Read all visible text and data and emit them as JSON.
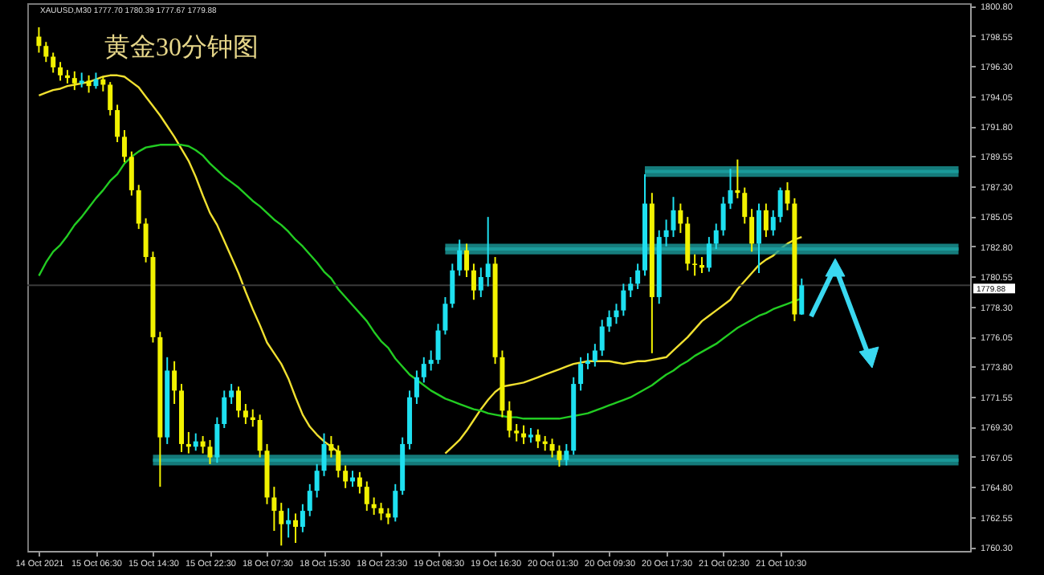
{
  "chart_data": {
    "type": "candlestick",
    "title": "黄金30分钟图",
    "annotations": [
      "XAUUSD,M30 1777.70 1780.39 1777.67 1779.88"
    ],
    "categories": [
      "14 Oct 2021",
      null,
      null,
      null,
      null,
      null,
      null,
      null,
      "15 Oct 06:30",
      null,
      null,
      null,
      null,
      null,
      null,
      null,
      "15 Oct 14:30",
      null,
      null,
      null,
      null,
      null,
      null,
      null,
      "15 Oct 22:30",
      null,
      null,
      null,
      null,
      null,
      null,
      null,
      "18 Oct 07:30",
      null,
      null,
      null,
      null,
      null,
      null,
      null,
      "18 Oct 15:30",
      null,
      null,
      null,
      null,
      null,
      null,
      null,
      "18 Oct 23:30",
      null,
      null,
      null,
      null,
      null,
      null,
      null,
      "19 Oct 08:30",
      null,
      null,
      null,
      null,
      null,
      null,
      null,
      "19 Oct 16:30",
      null,
      null,
      null,
      null,
      null,
      null,
      null,
      "20 Oct 01:30",
      null,
      null,
      null,
      null,
      null,
      null,
      null,
      "20 Oct 09:30",
      null,
      null,
      null,
      null,
      null,
      null,
      null,
      "20 Oct 17:30",
      null,
      null,
      null,
      null,
      null,
      null,
      null,
      "21 Oct 02:30",
      null,
      null,
      null,
      null,
      null,
      null,
      null,
      "21 Oct 10:30",
      null,
      null,
      null,
      null,
      null,
      null,
      null,
      null,
      null,
      null,
      null,
      null,
      null,
      null,
      null,
      null,
      null,
      null,
      null,
      null,
      null,
      null,
      null,
      null,
      null
    ],
    "ohlc": [
      [
        1798.5,
        1799.2,
        1797.3,
        1797.8
      ],
      [
        1797.8,
        1798.1,
        1796.6,
        1797.0
      ],
      [
        1797.0,
        1797.3,
        1795.8,
        1796.2
      ],
      [
        1796.2,
        1796.6,
        1795.2,
        1795.6
      ],
      [
        1795.6,
        1796.0,
        1795.0,
        1795.4
      ],
      [
        1795.4,
        1795.9,
        1794.5,
        1795.0
      ],
      [
        1795.0,
        1795.8,
        1794.7,
        1795.2
      ],
      [
        1795.2,
        1795.6,
        1794.3,
        1794.8
      ],
      [
        1794.8,
        1795.8,
        1794.6,
        1795.3
      ],
      [
        1795.3,
        1795.5,
        1794.4,
        1794.9
      ],
      [
        1794.9,
        1795.1,
        1792.6,
        1793.0
      ],
      [
        1793.0,
        1793.4,
        1790.6,
        1791.0
      ],
      [
        1791.0,
        1791.5,
        1789.1,
        1789.5
      ],
      [
        1789.5,
        1789.9,
        1786.6,
        1787.0
      ],
      [
        1787.0,
        1787.4,
        1784.1,
        1784.5
      ],
      [
        1784.5,
        1784.9,
        1781.6,
        1782.0
      ],
      [
        1782.0,
        1782.4,
        1775.6,
        1776.0
      ],
      [
        1776.0,
        1776.4,
        1764.8,
        1768.5
      ],
      [
        1768.5,
        1774.5,
        1768.0,
        1773.5
      ],
      [
        1773.5,
        1774.2,
        1771.0,
        1772.0
      ],
      [
        1772.0,
        1772.5,
        1767.4,
        1768.0
      ],
      [
        1768.0,
        1768.9,
        1767.3,
        1767.8
      ],
      [
        1767.8,
        1768.8,
        1767.5,
        1768.2
      ],
      [
        1768.2,
        1768.6,
        1767.3,
        1767.8
      ],
      [
        1767.8,
        1768.3,
        1766.5,
        1767.0
      ],
      [
        1767.0,
        1770.0,
        1766.6,
        1769.5
      ],
      [
        1769.5,
        1772.0,
        1769.2,
        1771.5
      ],
      [
        1771.5,
        1772.5,
        1771.0,
        1772.0
      ],
      [
        1772.0,
        1772.3,
        1770.0,
        1770.5
      ],
      [
        1770.5,
        1771.0,
        1769.5,
        1770.0
      ],
      [
        1770.0,
        1770.6,
        1769.3,
        1769.8
      ],
      [
        1769.8,
        1770.2,
        1767.0,
        1767.5
      ],
      [
        1767.5,
        1768.0,
        1763.5,
        1764.0
      ],
      [
        1764.0,
        1764.8,
        1761.5,
        1763.0
      ],
      [
        1763.0,
        1763.6,
        1760.4,
        1762.0
      ],
      [
        1762.0,
        1763.2,
        1761.0,
        1762.3
      ],
      [
        1762.3,
        1762.8,
        1760.6,
        1761.8
      ],
      [
        1761.8,
        1763.5,
        1761.4,
        1763.0
      ],
      [
        1763.0,
        1765.0,
        1762.6,
        1764.5
      ],
      [
        1764.5,
        1766.5,
        1764.0,
        1766.0
      ],
      [
        1766.0,
        1768.8,
        1765.6,
        1768.0
      ],
      [
        1768.0,
        1768.6,
        1767.0,
        1767.5
      ],
      [
        1767.5,
        1767.9,
        1765.5,
        1766.0
      ],
      [
        1766.0,
        1766.4,
        1764.7,
        1765.2
      ],
      [
        1765.2,
        1766.0,
        1764.8,
        1765.5
      ],
      [
        1765.5,
        1765.9,
        1764.3,
        1764.8
      ],
      [
        1764.8,
        1765.2,
        1763.0,
        1763.5
      ],
      [
        1763.5,
        1764.0,
        1762.7,
        1763.2
      ],
      [
        1763.2,
        1763.6,
        1762.3,
        1762.8
      ],
      [
        1762.8,
        1763.2,
        1762.0,
        1762.5
      ],
      [
        1762.5,
        1765.0,
        1762.2,
        1764.5
      ],
      [
        1764.5,
        1768.5,
        1764.2,
        1768.0
      ],
      [
        1768.0,
        1772.0,
        1767.6,
        1771.5
      ],
      [
        1771.5,
        1773.5,
        1771.0,
        1773.0
      ],
      [
        1773.0,
        1774.5,
        1772.6,
        1774.0
      ],
      [
        1774.0,
        1775.0,
        1773.5,
        1774.3
      ],
      [
        1774.3,
        1777.0,
        1774.0,
        1776.5
      ],
      [
        1776.5,
        1779.0,
        1776.2,
        1778.5
      ],
      [
        1778.5,
        1781.5,
        1778.2,
        1781.0
      ],
      [
        1781.0,
        1783.3,
        1780.6,
        1782.5
      ],
      [
        1782.5,
        1783.0,
        1780.5,
        1781.0
      ],
      [
        1781.0,
        1781.5,
        1778.8,
        1779.5
      ],
      [
        1779.5,
        1781.2,
        1779.0,
        1780.5
      ],
      [
        1780.5,
        1785.0,
        1779.8,
        1781.5
      ],
      [
        1781.5,
        1782.0,
        1774.0,
        1774.5
      ],
      [
        1774.5,
        1775.0,
        1770.0,
        1770.5
      ],
      [
        1770.5,
        1771.2,
        1768.5,
        1769.0
      ],
      [
        1769.0,
        1769.5,
        1768.2,
        1768.8
      ],
      [
        1768.8,
        1769.4,
        1768.0,
        1768.5
      ],
      [
        1768.5,
        1769.2,
        1768.1,
        1768.7
      ],
      [
        1768.7,
        1769.1,
        1767.7,
        1768.2
      ],
      [
        1768.2,
        1768.6,
        1767.5,
        1768.0
      ],
      [
        1768.0,
        1768.4,
        1767.0,
        1767.5
      ],
      [
        1767.5,
        1767.9,
        1766.3,
        1766.8
      ],
      [
        1766.8,
        1768.0,
        1766.4,
        1767.5
      ],
      [
        1767.5,
        1773.0,
        1767.2,
        1772.5
      ],
      [
        1772.5,
        1774.5,
        1772.0,
        1774.0
      ],
      [
        1774.0,
        1774.8,
        1773.6,
        1774.2
      ],
      [
        1774.2,
        1775.5,
        1773.8,
        1775.0
      ],
      [
        1775.0,
        1777.3,
        1774.6,
        1776.8
      ],
      [
        1776.8,
        1778.0,
        1776.4,
        1777.5
      ],
      [
        1777.5,
        1778.5,
        1777.0,
        1778.0
      ],
      [
        1778.0,
        1780.0,
        1777.6,
        1779.5
      ],
      [
        1779.5,
        1780.5,
        1779.0,
        1780.0
      ],
      [
        1780.0,
        1781.5,
        1779.6,
        1781.0
      ],
      [
        1781.0,
        1788.2,
        1780.6,
        1786.0
      ],
      [
        1786.0,
        1786.8,
        1774.8,
        1779.0
      ],
      [
        1779.0,
        1784.0,
        1778.5,
        1783.5
      ],
      [
        1783.5,
        1784.8,
        1782.8,
        1784.0
      ],
      [
        1784.0,
        1786.5,
        1783.5,
        1785.5
      ],
      [
        1785.5,
        1786.0,
        1783.8,
        1784.5
      ],
      [
        1784.5,
        1785.0,
        1781.0,
        1781.5
      ],
      [
        1781.5,
        1782.2,
        1780.6,
        1781.4
      ],
      [
        1781.4,
        1782.0,
        1780.8,
        1781.2
      ],
      [
        1781.2,
        1783.5,
        1780.9,
        1783.0
      ],
      [
        1783.0,
        1784.5,
        1782.6,
        1784.0
      ],
      [
        1784.0,
        1786.5,
        1783.6,
        1786.0
      ],
      [
        1786.0,
        1788.6,
        1785.6,
        1787.0
      ],
      [
        1787.0,
        1789.3,
        1786.4,
        1786.8
      ],
      [
        1786.8,
        1787.2,
        1784.5,
        1785.0
      ],
      [
        1785.0,
        1785.6,
        1782.4,
        1783.0
      ],
      [
        1783.0,
        1786.0,
        1780.8,
        1785.5
      ],
      [
        1785.5,
        1786.0,
        1783.5,
        1784.0
      ],
      [
        1784.0,
        1785.5,
        1783.6,
        1785.0
      ],
      [
        1785.0,
        1787.2,
        1784.6,
        1787.0
      ],
      [
        1787.0,
        1787.6,
        1785.5,
        1786.0
      ],
      [
        1786.0,
        1786.4,
        1777.2,
        1777.7
      ],
      [
        1777.7,
        1780.39,
        1777.67,
        1779.88
      ],
      null,
      null,
      null,
      null,
      null,
      null,
      null,
      null,
      null,
      null,
      null,
      null,
      null,
      null,
      null,
      null,
      null,
      null,
      null,
      null,
      null,
      null
    ],
    "colors": [
      "#f2f200",
      "#f2f200",
      "#f2f200",
      "#f2f200",
      "#f2f200",
      "#f2f200",
      "#1ee0f0",
      "#f2f200",
      "#1ee0f0",
      "#f2f200",
      "#f2f200",
      "#f2f200",
      "#f2f200",
      "#f2f200",
      "#f2f200",
      "#f2f200",
      "#f2f200",
      "#f2f200",
      "#1ee0f0",
      "#f2f200",
      "#f2f200",
      "#f2f200",
      "#1ee0f0",
      "#f2f200",
      "#f2f200",
      "#1ee0f0",
      "#1ee0f0",
      "#1ee0f0",
      "#f2f200",
      "#f2f200",
      "#f2f200",
      "#f2f200",
      "#f2f200",
      "#f2f200",
      "#f2f200",
      "#1ee0f0",
      "#f2f200",
      "#1ee0f0",
      "#1ee0f0",
      "#1ee0f0",
      "#1ee0f0",
      "#f2f200",
      "#f2f200",
      "#f2f200",
      "#1ee0f0",
      "#f2f200",
      "#f2f200",
      "#f2f200",
      "#f2f200",
      "#f2f200",
      "#1ee0f0",
      "#1ee0f0",
      "#1ee0f0",
      "#1ee0f0",
      "#1ee0f0",
      "#1ee0f0",
      "#1ee0f0",
      "#1ee0f0",
      "#1ee0f0",
      "#1ee0f0",
      "#f2f200",
      "#f2f200",
      "#1ee0f0",
      "#1ee0f0",
      "#f2f200",
      "#f2f200",
      "#f2f200",
      "#f2f200",
      "#f2f200",
      "#1ee0f0",
      "#f2f200",
      "#f2f200",
      "#f2f200",
      "#f2f200",
      "#1ee0f0",
      "#1ee0f0",
      "#1ee0f0",
      "#1ee0f0",
      "#1ee0f0",
      "#1ee0f0",
      "#1ee0f0",
      "#1ee0f0",
      "#1ee0f0",
      "#1ee0f0",
      "#1ee0f0",
      "#1ee0f0",
      "#f2f200",
      "#1ee0f0",
      "#1ee0f0",
      "#1ee0f0",
      "#f2f200",
      "#f2f200",
      "#f2f200",
      "#f2f200",
      "#1ee0f0",
      "#1ee0f0",
      "#1ee0f0",
      "#1ee0f0",
      "#f2f200",
      "#f2f200",
      "#f2f200",
      "#1ee0f0",
      "#f2f200",
      "#1ee0f0",
      "#1ee0f0",
      "#f2f200",
      "#f2f200",
      "#1ee0f0",
      null,
      null,
      null,
      null,
      null,
      null,
      null,
      null,
      null,
      null,
      null,
      null,
      null,
      null,
      null,
      null,
      null,
      null,
      null,
      null,
      null,
      null
    ],
    "series": [
      {
        "type": "line",
        "color": "#f0e030",
        "values": [
          1794.1,
          1794.3,
          1794.5,
          1794.6,
          1794.8,
          1794.9,
          1795.0,
          1795.1,
          1795.3,
          1795.5,
          1795.6,
          1795.6,
          1795.5,
          1795.1,
          1794.7,
          1794.0,
          1793.3,
          1792.6,
          1791.8,
          1791.0,
          1790.1,
          1789.2,
          1788.0,
          1786.6,
          1785.3,
          1784.4,
          1783.2,
          1782.0,
          1780.8,
          1779.4,
          1778.1,
          1776.9,
          1775.6,
          1774.8,
          1774.0,
          1772.9,
          1771.5,
          1770.2,
          1769.3,
          1768.7,
          1768.2,
          1767.8,
          1767.4,
          null,
          null,
          null,
          null,
          null,
          null,
          null,
          null,
          null,
          null,
          null,
          null,
          null,
          null,
          1767.3,
          1767.8,
          1768.3,
          1769.0,
          1769.8,
          1770.6,
          1771.3,
          1771.9,
          1772.3,
          1772.4,
          1772.5,
          1772.6,
          1772.8,
          1773.0,
          1773.2,
          1773.4,
          1773.6,
          1773.8,
          1774.0,
          1774.1,
          1774.2,
          1774.2,
          1774.2,
          1774.2,
          1774.1,
          1774.0,
          1774.1,
          1774.2,
          1774.2,
          1774.3,
          1774.4,
          1774.5,
          1775.0,
          1775.5,
          1776.0,
          1776.6,
          1777.2,
          1777.6,
          1778.0,
          1778.4,
          1778.8,
          1779.6,
          1780.2,
          1780.8,
          1781.4,
          1781.8,
          1782.1,
          1782.6,
          1783.0,
          1783.3,
          1783.5,
          null,
          null,
          null,
          null,
          null,
          null,
          null,
          null,
          null,
          null,
          null,
          null,
          null,
          null,
          null,
          null,
          null,
          null,
          null,
          null,
          null,
          null
        ]
      },
      {
        "type": "line",
        "color": "#22cc22",
        "values": [
          1780.6,
          1781.6,
          1782.4,
          1782.9,
          1783.6,
          1784.4,
          1785.0,
          1785.7,
          1786.4,
          1787.0,
          1787.7,
          1788.2,
          1789.0,
          1789.5,
          1789.9,
          1790.2,
          1790.3,
          1790.4,
          1790.4,
          1790.4,
          1790.4,
          1790.3,
          1790.0,
          1789.6,
          1789.0,
          1788.5,
          1788.0,
          1787.6,
          1787.2,
          1786.7,
          1786.2,
          1785.8,
          1785.3,
          1784.8,
          1784.4,
          1783.9,
          1783.3,
          1782.8,
          1782.2,
          1781.6,
          1780.9,
          1780.4,
          1779.6,
          1779.0,
          1778.4,
          1777.8,
          1777.2,
          1776.4,
          1775.7,
          1775.2,
          1774.4,
          1773.8,
          1773.2,
          1772.8,
          1772.4,
          1772.0,
          1771.7,
          1771.4,
          1771.2,
          1771.0,
          1770.8,
          1770.6,
          1770.5,
          1770.3,
          1770.2,
          1770.1,
          1770.0,
          1770.0,
          1769.9,
          1769.9,
          1769.9,
          1769.9,
          1769.9,
          1769.9,
          1770.0,
          1770.1,
          1770.2,
          1770.3,
          1770.5,
          1770.7,
          1770.9,
          1771.1,
          1771.3,
          1771.5,
          1771.8,
          1772.1,
          1772.4,
          1772.8,
          1773.2,
          1773.5,
          1773.9,
          1774.2,
          1774.6,
          1774.9,
          1775.2,
          1775.5,
          1775.9,
          1776.3,
          1776.7,
          1777.0,
          1777.3,
          1777.6,
          1777.8,
          1778.1,
          1778.3,
          1778.5,
          1778.7,
          1778.9,
          null,
          null,
          null,
          null,
          null,
          null,
          null,
          null,
          null,
          null,
          null,
          null,
          null,
          null,
          null,
          null,
          null,
          null,
          null,
          null,
          null,
          null
        ]
      },
      {
        "type": "line",
        "color": "#1a9a9a",
        "values": [
          null,
          null,
          null,
          null,
          null,
          null,
          null,
          null,
          null,
          null,
          null,
          null,
          null,
          null,
          null,
          null,
          null,
          null,
          null,
          null,
          null,
          null,
          null,
          null,
          null,
          null,
          null,
          null,
          null,
          null,
          null,
          null,
          null,
          null,
          null,
          null,
          null,
          null,
          null,
          null,
          null,
          null,
          null,
          null,
          null,
          null,
          null,
          null,
          null,
          null,
          null,
          null,
          null,
          null,
          null,
          null,
          null,
          null,
          null,
          null,
          null,
          null,
          null,
          null,
          null,
          null,
          null,
          null,
          null,
          null,
          null,
          null,
          null,
          null,
          null,
          null,
          null,
          null,
          null,
          null,
          null,
          null,
          null,
          null,
          null,
          1788.4,
          1788.4,
          1788.4,
          1788.4,
          1788.4,
          1788.4,
          1788.4,
          1788.4,
          1788.4,
          1788.4,
          1788.4,
          1788.4,
          1788.4,
          1788.4,
          1788.4,
          1788.4,
          1788.4,
          1788.4,
          1788.4,
          1788.4,
          1788.4,
          1788.4,
          1788.4,
          1788.4,
          1788.4,
          1788.4,
          1788.4,
          1788.4,
          1788.4,
          1788.4,
          1788.4,
          1788.4,
          1788.4,
          1788.4,
          1788.4,
          1788.4,
          1788.4,
          1788.4,
          1788.4,
          1788.4,
          1788.4,
          1788.4,
          1788.4,
          1788.4,
          1788.4
        ],
        "lower": [
          null,
          null,
          null,
          null,
          null,
          null,
          null,
          null,
          null,
          null,
          null,
          null,
          null,
          null,
          null,
          null,
          null,
          null,
          null,
          null,
          null,
          null,
          null,
          null,
          null,
          null,
          null,
          null,
          null,
          null,
          null,
          null,
          null,
          null,
          null,
          null,
          null,
          null,
          null,
          null,
          null,
          null,
          null,
          null,
          null,
          null,
          null,
          null,
          null,
          null,
          null,
          null,
          null,
          null,
          null,
          null,
          null,
          null,
          null,
          null,
          null,
          null,
          null,
          null,
          null,
          null,
          null,
          null,
          null,
          null,
          null,
          null,
          null,
          null,
          null,
          null,
          null,
          null,
          null,
          null,
          null,
          null,
          null,
          null,
          null,
          1788.0,
          1788.0,
          1788.0,
          1788.0,
          1788.0,
          1788.0,
          1788.0,
          1788.0,
          1788.0,
          1788.0,
          1788.0,
          1788.0,
          1788.0,
          1788.0,
          1788.0,
          1788.0,
          1788.0,
          1788.0,
          1788.0,
          1788.0,
          1788.0,
          1788.0,
          1788.0,
          1788.0,
          1788.0,
          1788.0,
          1788.0,
          1788.0,
          1788.0,
          1788.0,
          1788.0,
          1788.0,
          1788.0,
          1788.0,
          1788.0,
          1788.0,
          1788.0,
          1788.0,
          1788.0,
          1788.0,
          1788.0,
          1788.0,
          1788.0,
          1788.0,
          1788.0
        ],
        "upper": [
          null,
          null,
          null,
          null,
          null,
          null,
          null,
          null,
          null,
          null,
          null,
          null,
          null,
          null,
          null,
          null,
          null,
          null,
          null,
          null,
          null,
          null,
          null,
          null,
          null,
          null,
          null,
          null,
          null,
          null,
          null,
          null,
          null,
          null,
          null,
          null,
          null,
          null,
          null,
          null,
          null,
          null,
          null,
          null,
          null,
          null,
          null,
          null,
          null,
          null,
          null,
          null,
          null,
          null,
          null,
          null,
          null,
          null,
          null,
          null,
          null,
          null,
          null,
          null,
          null,
          null,
          null,
          null,
          null,
          null,
          null,
          null,
          null,
          null,
          null,
          null,
          null,
          null,
          null,
          null,
          null,
          null,
          null,
          null,
          null,
          1788.8,
          1788.8,
          1788.8,
          1788.8,
          1788.8,
          1788.8,
          1788.8,
          1788.8,
          1788.8,
          1788.8,
          1788.8,
          1788.8,
          1788.8,
          1788.8,
          1788.8,
          1788.8,
          1788.8,
          1788.8,
          1788.8,
          1788.8,
          1788.8,
          1788.8,
          1788.8,
          1788.8,
          1788.8,
          1788.8,
          1788.8,
          1788.8,
          1788.8,
          1788.8,
          1788.8,
          1788.8,
          1788.8,
          1788.8,
          1788.8,
          1788.8,
          1788.8,
          1788.8,
          1788.8,
          1788.8,
          1788.8,
          1788.8,
          1788.8,
          1788.8,
          1788.8
        ]
      },
      {
        "type": "line",
        "color": "#1b9c9c",
        "values": [
          null,
          null,
          null,
          null,
          null,
          null,
          null,
          null,
          null,
          null,
          null,
          null,
          null,
          null,
          null,
          null,
          null,
          null,
          null,
          null,
          null,
          null,
          null,
          null,
          null,
          null,
          null,
          null,
          null,
          null,
          null,
          null,
          null,
          null,
          null,
          null,
          null,
          null,
          null,
          null,
          null,
          null,
          null,
          null,
          null,
          null,
          null,
          null,
          null,
          null,
          null,
          null,
          null,
          null,
          null,
          null,
          null,
          1782.6,
          1782.6,
          1782.6,
          1782.6,
          1782.6,
          1782.6,
          1782.6,
          1782.6,
          1782.6,
          1782.6,
          1782.6,
          1782.6,
          1782.6,
          1782.6,
          1782.6,
          1782.6,
          1782.6,
          1782.6,
          1782.6,
          1782.6,
          1782.6,
          1782.6,
          1782.6,
          1782.6,
          1782.6,
          1782.6,
          1782.6,
          1782.6,
          1782.6,
          1782.6,
          1782.6,
          1782.6,
          1782.6,
          1782.6,
          1782.6,
          1782.6,
          1782.6,
          1782.6,
          1782.6,
          1782.6,
          1782.6,
          1782.6,
          1782.6,
          1782.6,
          1782.6,
          1782.6,
          1782.6,
          1782.6,
          1782.6,
          1782.6,
          1782.6,
          1782.6,
          1782.6,
          1782.6,
          1782.6,
          1782.6,
          1782.6,
          1782.6,
          1782.6,
          1782.6,
          1782.6,
          1782.6,
          1782.6,
          1782.6,
          1782.6,
          1782.6,
          1782.6,
          1782.6,
          1782.6,
          1782.6,
          1782.6,
          1782.6,
          1782.6
        ],
        "lower": [
          null,
          null,
          null,
          null,
          null,
          null,
          null,
          null,
          null,
          null,
          null,
          null,
          null,
          null,
          null,
          null,
          null,
          null,
          null,
          null,
          null,
          null,
          null,
          null,
          null,
          null,
          null,
          null,
          null,
          null,
          null,
          null,
          null,
          null,
          null,
          null,
          null,
          null,
          null,
          null,
          null,
          null,
          null,
          null,
          null,
          null,
          null,
          null,
          null,
          null,
          null,
          null,
          null,
          null,
          null,
          null,
          null,
          1782.2,
          1782.2,
          1782.2,
          1782.2,
          1782.2,
          1782.2,
          1782.2,
          1782.2,
          1782.2,
          1782.2,
          1782.2,
          1782.2,
          1782.2,
          1782.2,
          1782.2,
          1782.2,
          1782.2,
          1782.2,
          1782.2,
          1782.2,
          1782.2,
          1782.2,
          1782.2,
          1782.2,
          1782.2,
          1782.2,
          1782.2,
          1782.2,
          1782.2,
          1782.2,
          1782.2,
          1782.2,
          1782.2,
          1782.2,
          1782.2,
          1782.2,
          1782.2,
          1782.2,
          1782.2,
          1782.2,
          1782.2,
          1782.2,
          1782.2,
          1782.2,
          1782.2,
          1782.2,
          1782.2,
          1782.2,
          1782.2,
          1782.2,
          1782.2,
          1782.2,
          1782.2,
          1782.2,
          1782.2,
          1782.2,
          1782.2,
          1782.2,
          1782.2,
          1782.2,
          1782.2,
          1782.2,
          1782.2,
          1782.2,
          1782.2,
          1782.2,
          1782.2,
          1782.2,
          1782.2,
          1782.2,
          1782.2,
          1782.2,
          1782.2
        ],
        "upper": [
          null,
          null,
          null,
          null,
          null,
          null,
          null,
          null,
          null,
          null,
          null,
          null,
          null,
          null,
          null,
          null,
          null,
          null,
          null,
          null,
          null,
          null,
          null,
          null,
          null,
          null,
          null,
          null,
          null,
          null,
          null,
          null,
          null,
          null,
          null,
          null,
          null,
          null,
          null,
          null,
          null,
          null,
          null,
          null,
          null,
          null,
          null,
          null,
          null,
          null,
          null,
          null,
          null,
          null,
          null,
          null,
          null,
          1783.0,
          1783.0,
          1783.0,
          1783.0,
          1783.0,
          1783.0,
          1783.0,
          1783.0,
          1783.0,
          1783.0,
          1783.0,
          1783.0,
          1783.0,
          1783.0,
          1783.0,
          1783.0,
          1783.0,
          1783.0,
          1783.0,
          1783.0,
          1783.0,
          1783.0,
          1783.0,
          1783.0,
          1783.0,
          1783.0,
          1783.0,
          1783.0,
          1783.0,
          1783.0,
          1783.0,
          1783.0,
          1783.0,
          1783.0,
          1783.0,
          1783.0,
          1783.0,
          1783.0,
          1783.0,
          1783.0,
          1783.0,
          1783.0,
          1783.0,
          1783.0,
          1783.0,
          1783.0,
          1783.0,
          1783.0,
          1783.0,
          1783.0,
          1783.0,
          1783.0,
          1783.0,
          1783.0,
          1783.0,
          1783.0,
          1783.0,
          1783.0,
          1783.0,
          1783.0,
          1783.0,
          1783.0,
          1783.0,
          1783.0,
          1783.0,
          1783.0,
          1783.0,
          1783.0,
          1783.0,
          1783.0,
          1783.0,
          1783.0,
          1783.0
        ]
      },
      {
        "type": "line",
        "color": "#199898",
        "values": [
          null,
          null,
          null,
          null,
          null,
          null,
          null,
          null,
          null,
          null,
          null,
          null,
          null,
          null,
          null,
          null,
          1766.8,
          1766.8,
          1766.8,
          1766.8,
          1766.8,
          1766.8,
          1766.8,
          1766.8,
          1766.8,
          1766.8,
          1766.8,
          1766.8,
          1766.8,
          1766.8,
          1766.8,
          1766.8,
          1766.8,
          1766.8,
          1766.8,
          1766.8,
          1766.8,
          1766.8,
          1766.8,
          1766.8,
          1766.8,
          1766.8,
          1766.8,
          1766.8,
          1766.8,
          1766.8,
          1766.8,
          1766.8,
          1766.8,
          1766.8,
          1766.8,
          1766.8,
          1766.8,
          1766.8,
          1766.8,
          1766.8,
          1766.8,
          1766.8,
          1766.8,
          1766.8,
          1766.8,
          1766.8,
          1766.8,
          1766.8,
          1766.8,
          1766.8,
          1766.8,
          1766.8,
          1766.8,
          1766.8,
          1766.8,
          1766.8,
          1766.8,
          1766.8,
          1766.8,
          1766.8,
          1766.8,
          1766.8,
          1766.8,
          1766.8,
          1766.8,
          1766.8,
          1766.8,
          1766.8,
          1766.8,
          1766.8,
          1766.8,
          1766.8,
          1766.8,
          1766.8,
          1766.8,
          1766.8,
          1766.8,
          1766.8,
          1766.8,
          1766.8,
          1766.8,
          1766.8,
          1766.8,
          1766.8,
          1766.8,
          1766.8,
          1766.8,
          1766.8,
          1766.8,
          1766.8,
          1766.8,
          1766.8,
          1766.8,
          1766.8,
          1766.8,
          1766.8,
          1766.8,
          1766.8,
          1766.8,
          1766.8,
          1766.8,
          1766.8,
          1766.8,
          1766.8,
          1766.8,
          1766.8,
          1766.8,
          1766.8,
          1766.8,
          1766.8,
          1766.8,
          1766.8,
          1766.8,
          1766.8
        ],
        "lower": [
          null,
          null,
          null,
          null,
          null,
          null,
          null,
          null,
          null,
          null,
          null,
          null,
          null,
          null,
          null,
          null,
          1766.4,
          1766.4,
          1766.4,
          1766.4,
          1766.4,
          1766.4,
          1766.4,
          1766.4,
          1766.4,
          1766.4,
          1766.4,
          1766.4,
          1766.4,
          1766.4,
          1766.4,
          1766.4,
          1766.4,
          1766.4,
          1766.4,
          1766.4,
          1766.4,
          1766.4,
          1766.4,
          1766.4,
          1766.4,
          1766.4,
          1766.4,
          1766.4,
          1766.4,
          1766.4,
          1766.4,
          1766.4,
          1766.4,
          1766.4,
          1766.4,
          1766.4,
          1766.4,
          1766.4,
          1766.4,
          1766.4,
          1766.4,
          1766.4,
          1766.4,
          1766.4,
          1766.4,
          1766.4,
          1766.4,
          1766.4,
          1766.4,
          1766.4,
          1766.4,
          1766.4,
          1766.4,
          1766.4,
          1766.4,
          1766.4,
          1766.4,
          1766.4,
          1766.4,
          1766.4,
          1766.4,
          1766.4,
          1766.4,
          1766.4,
          1766.4,
          1766.4,
          1766.4,
          1766.4,
          1766.4,
          1766.4,
          1766.4,
          1766.4,
          1766.4,
          1766.4,
          1766.4,
          1766.4,
          1766.4,
          1766.4,
          1766.4,
          1766.4,
          1766.4,
          1766.4,
          1766.4,
          1766.4,
          1766.4,
          1766.4,
          1766.4,
          1766.4,
          1766.4,
          1766.4,
          1766.4,
          1766.4,
          1766.4,
          1766.4,
          1766.4,
          1766.4,
          1766.4,
          1766.4,
          1766.4,
          1766.4,
          1766.4,
          1766.4,
          1766.4,
          1766.4,
          1766.4,
          1766.4,
          1766.4,
          1766.4,
          1766.4,
          1766.4,
          1766.4,
          1766.4,
          1766.4,
          1766.4
        ],
        "upper": [
          null,
          null,
          null,
          null,
          null,
          null,
          null,
          null,
          null,
          null,
          null,
          null,
          null,
          null,
          null,
          null,
          1767.2,
          1767.2,
          1767.2,
          1767.2,
          1767.2,
          1767.2,
          1767.2,
          1767.2,
          1767.2,
          1767.2,
          1767.2,
          1767.2,
          1767.2,
          1767.2,
          1767.2,
          1767.2,
          1767.2,
          1767.2,
          1767.2,
          1767.2,
          1767.2,
          1767.2,
          1767.2,
          1767.2,
          1767.2,
          1767.2,
          1767.2,
          1767.2,
          1767.2,
          1767.2,
          1767.2,
          1767.2,
          1767.2,
          1767.2,
          1767.2,
          1767.2,
          1767.2,
          1767.2,
          1767.2,
          1767.2,
          1767.2,
          1767.2,
          1767.2,
          1767.2,
          1767.2,
          1767.2,
          1767.2,
          1767.2,
          1767.2,
          1767.2,
          1767.2,
          1767.2,
          1767.2,
          1767.2,
          1767.2,
          1767.2,
          1767.2,
          1767.2,
          1767.2,
          1767.2,
          1767.2,
          1767.2,
          1767.2,
          1767.2,
          1767.2,
          1767.2,
          1767.2,
          1767.2,
          1767.2,
          1767.2,
          1767.2,
          1767.2,
          1767.2,
          1767.2,
          1767.2,
          1767.2,
          1767.2,
          1767.2,
          1767.2,
          1767.2,
          1767.2,
          1767.2,
          1767.2,
          1767.2,
          1767.2,
          1767.2,
          1767.2,
          1767.2,
          1767.2,
          1767.2,
          1767.2,
          1767.2,
          1767.2,
          1767.2,
          1767.2,
          1767.2,
          1767.2,
          1767.2,
          1767.2,
          1767.2,
          1767.2,
          1767.2,
          1767.2,
          1767.2,
          1767.2,
          1767.2,
          1767.2,
          1767.2,
          1767.2,
          1767.2,
          1767.2,
          1767.2,
          1767.2,
          1767.2
        ]
      }
    ],
    "ref_lines": [
      {
        "axis": "y",
        "value": 1779.88,
        "label": "1779.88",
        "color": "#3a3a3a"
      }
    ],
    "ylim": [
      1760.0,
      1801.0
    ],
    "yticks": [
      {
        "value": 1800.8,
        "label": "1800.80"
      },
      1798.55,
      {
        "value": 1796.3,
        "label": "1796.30"
      },
      1794.05,
      {
        "value": 1791.8,
        "label": "1791.80"
      },
      1789.55,
      {
        "value": 1787.3,
        "label": "1787.30"
      },
      1785.05,
      {
        "value": 1782.8,
        "label": "1782.80"
      },
      1780.55,
      {
        "value": 1778.3,
        "label": "1778.30"
      },
      1776.05,
      {
        "value": 1773.8,
        "label": "1773.80"
      },
      1771.55,
      {
        "value": 1769.3,
        "label": "1769.30"
      },
      1767.05,
      {
        "value": 1764.8,
        "label": "1764.80"
      },
      1762.55,
      {
        "value": 1760.3,
        "label": "1760.30"
      }
    ]
  }
}
